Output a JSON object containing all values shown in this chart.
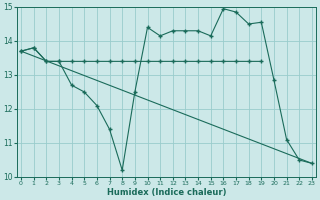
{
  "xlabel": "Humidex (Indice chaleur)",
  "bg_color": "#cce8e8",
  "grid_color": "#99cccc",
  "line_color": "#1a6b5a",
  "line1_x": [
    0,
    1,
    2,
    3,
    4,
    5,
    6,
    7,
    8,
    9,
    10,
    11,
    12,
    13,
    14,
    15,
    16,
    17,
    18,
    19
  ],
  "line1_y": [
    13.7,
    13.8,
    13.4,
    13.4,
    13.4,
    13.4,
    13.4,
    13.4,
    13.4,
    13.4,
    13.4,
    13.4,
    13.4,
    13.4,
    13.4,
    13.4,
    13.4,
    13.4,
    13.4,
    13.4
  ],
  "line2_x": [
    0,
    1,
    2,
    3,
    4,
    5,
    6,
    7,
    8,
    9,
    10,
    11,
    12,
    13,
    14,
    15,
    16,
    17,
    18,
    19,
    20,
    21,
    22,
    23
  ],
  "line2_y": [
    13.7,
    13.8,
    13.4,
    13.4,
    12.7,
    12.5,
    12.1,
    11.4,
    10.2,
    12.5,
    14.4,
    14.15,
    14.3,
    14.3,
    14.3,
    14.15,
    14.95,
    14.85,
    14.5,
    14.55,
    12.85,
    11.1,
    10.5,
    10.4
  ],
  "line3_x": [
    0,
    23
  ],
  "line3_y": [
    13.7,
    10.4
  ],
  "xlim": [
    0,
    23
  ],
  "ylim": [
    10,
    15
  ],
  "yticks": [
    10,
    11,
    12,
    13,
    14,
    15
  ],
  "xticks": [
    0,
    1,
    2,
    3,
    4,
    5,
    6,
    7,
    8,
    9,
    10,
    11,
    12,
    13,
    14,
    15,
    16,
    17,
    18,
    19,
    20,
    21,
    22,
    23
  ]
}
